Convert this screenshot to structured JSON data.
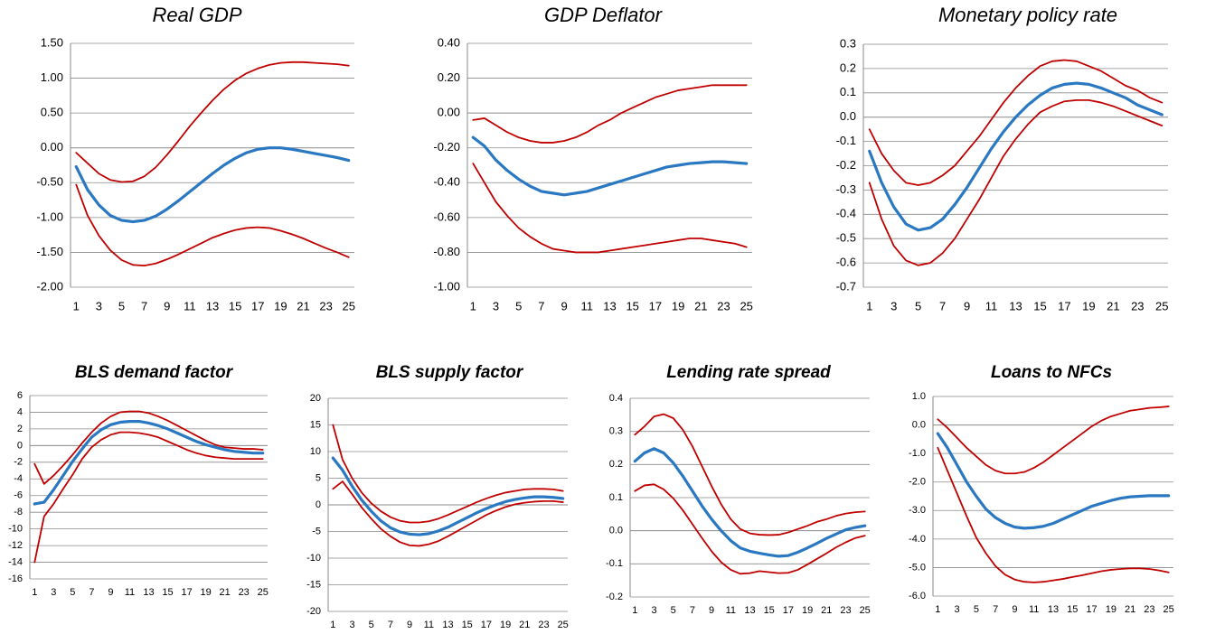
{
  "chart_data": [
    {
      "type": "line",
      "title": "Real GDP",
      "x": [
        1,
        2,
        3,
        4,
        5,
        6,
        7,
        8,
        9,
        10,
        11,
        12,
        13,
        14,
        15,
        16,
        17,
        18,
        19,
        20,
        21,
        22,
        23,
        24,
        25
      ],
      "xlim": [
        0.5,
        25.5
      ],
      "xticks": [
        1,
        3,
        5,
        7,
        9,
        11,
        13,
        15,
        17,
        19,
        21,
        23,
        25
      ],
      "ylim": [
        -2,
        1.5
      ],
      "yticks": [
        {
          "value": -2,
          "label": "-2.00"
        },
        {
          "value": -1.5,
          "label": "-1.50"
        },
        {
          "value": -1,
          "label": "-1.00"
        },
        {
          "value": -0.5,
          "label": "-0.50"
        },
        {
          "value": 0,
          "label": "0.00"
        },
        {
          "value": 0.5,
          "label": "0.50"
        },
        {
          "value": 1,
          "label": "1.00"
        },
        {
          "value": 1.5,
          "label": "1.50"
        }
      ],
      "grid": true,
      "series": [
        {
          "color": "#c00000",
          "values": [
            -0.53,
            -0.97,
            -1.26,
            -1.47,
            -1.61,
            -1.68,
            -1.69,
            -1.66,
            -1.6,
            -1.53,
            -1.45,
            -1.37,
            -1.29,
            -1.23,
            -1.18,
            -1.15,
            -1.14,
            -1.15,
            -1.19,
            -1.24,
            -1.3,
            -1.37,
            -1.44,
            -1.5,
            -1.57
          ]
        },
        {
          "color": "#c00000",
          "values": [
            -0.07,
            -0.22,
            -0.37,
            -0.46,
            -0.49,
            -0.48,
            -0.41,
            -0.28,
            -0.1,
            0.1,
            0.31,
            0.5,
            0.68,
            0.84,
            0.97,
            1.07,
            1.14,
            1.19,
            1.22,
            1.23,
            1.23,
            1.22,
            1.21,
            1.2,
            1.18
          ]
        },
        {
          "color": "#2a78c2",
          "values": [
            -0.27,
            -0.6,
            -0.82,
            -0.97,
            -1.04,
            -1.06,
            -1.04,
            -0.98,
            -0.88,
            -0.76,
            -0.63,
            -0.5,
            -0.37,
            -0.25,
            -0.15,
            -0.07,
            -0.02,
            0,
            0,
            -0.02,
            -0.05,
            -0.08,
            -0.11,
            -0.14,
            -0.18
          ]
        }
      ]
    },
    {
      "type": "line",
      "title": "GDP Deflator",
      "x": [
        1,
        2,
        3,
        4,
        5,
        6,
        7,
        8,
        9,
        10,
        11,
        12,
        13,
        14,
        15,
        16,
        17,
        18,
        19,
        20,
        21,
        22,
        23,
        24,
        25
      ],
      "xlim": [
        0.5,
        25.5
      ],
      "xticks": [
        1,
        3,
        5,
        7,
        9,
        11,
        13,
        15,
        17,
        19,
        21,
        23,
        25
      ],
      "ylim": [
        -1,
        0.4
      ],
      "yticks": [
        {
          "value": -1,
          "label": "-1.00"
        },
        {
          "value": -0.8,
          "label": "-0.80"
        },
        {
          "value": -0.6,
          "label": "-0.60"
        },
        {
          "value": -0.4,
          "label": "-0.40"
        },
        {
          "value": -0.2,
          "label": "-0.20"
        },
        {
          "value": 0,
          "label": "0.00"
        },
        {
          "value": 0.2,
          "label": "0.20"
        },
        {
          "value": 0.4,
          "label": "0.40"
        }
      ],
      "grid": true,
      "series": [
        {
          "color": "#c00000",
          "values": [
            -0.29,
            -0.4,
            -0.51,
            -0.59,
            -0.66,
            -0.71,
            -0.75,
            -0.78,
            -0.79,
            -0.8,
            -0.8,
            -0.8,
            -0.79,
            -0.78,
            -0.77,
            -0.76,
            -0.75,
            -0.74,
            -0.73,
            -0.72,
            -0.72,
            -0.73,
            -0.74,
            -0.75,
            -0.77
          ]
        },
        {
          "color": "#c00000",
          "values": [
            -0.04,
            -0.03,
            -0.07,
            -0.11,
            -0.14,
            -0.16,
            -0.17,
            -0.17,
            -0.16,
            -0.14,
            -0.11,
            -0.07,
            -0.04,
            0,
            0.03,
            0.06,
            0.09,
            0.11,
            0.13,
            0.14,
            0.15,
            0.16,
            0.16,
            0.16,
            0.16
          ]
        },
        {
          "color": "#2a78c2",
          "values": [
            -0.14,
            -0.19,
            -0.27,
            -0.33,
            -0.38,
            -0.42,
            -0.45,
            -0.46,
            -0.47,
            -0.46,
            -0.45,
            -0.43,
            -0.41,
            -0.39,
            -0.37,
            -0.35,
            -0.33,
            -0.31,
            -0.3,
            -0.29,
            -0.285,
            -0.28,
            -0.28,
            -0.285,
            -0.29
          ]
        }
      ]
    },
    {
      "type": "line",
      "title": "Monetary policy rate",
      "x": [
        1,
        2,
        3,
        4,
        5,
        6,
        7,
        8,
        9,
        10,
        11,
        12,
        13,
        14,
        15,
        16,
        17,
        18,
        19,
        20,
        21,
        22,
        23,
        24,
        25
      ],
      "xlim": [
        0.5,
        25.5
      ],
      "xticks": [
        1,
        3,
        5,
        7,
        9,
        11,
        13,
        15,
        17,
        19,
        21,
        23,
        25
      ],
      "ylim": [
        -0.7,
        0.3
      ],
      "yticks": [
        -0.7,
        -0.6,
        -0.5,
        -0.4,
        -0.3,
        -0.2,
        -0.1,
        {
          "value": 0,
          "label": "0.0"
        },
        0.1,
        0.2,
        0.3
      ],
      "grid": true,
      "series": [
        {
          "color": "#c00000",
          "values": [
            -0.27,
            -0.42,
            -0.53,
            -0.59,
            -0.61,
            -0.6,
            -0.56,
            -0.5,
            -0.42,
            -0.34,
            -0.25,
            -0.16,
            -0.09,
            -0.03,
            0.02,
            0.045,
            0.065,
            0.07,
            0.07,
            0.06,
            0.045,
            0.025,
            0.005,
            -0.015,
            -0.035
          ]
        },
        {
          "color": "#c00000",
          "values": [
            -0.05,
            -0.15,
            -0.22,
            -0.27,
            -0.28,
            -0.27,
            -0.24,
            -0.2,
            -0.14,
            -0.08,
            -0.01,
            0.06,
            0.12,
            0.17,
            0.21,
            0.23,
            0.235,
            0.23,
            0.21,
            0.19,
            0.16,
            0.13,
            0.11,
            0.08,
            0.06
          ]
        },
        {
          "color": "#2a78c2",
          "values": [
            -0.14,
            -0.27,
            -0.37,
            -0.44,
            -0.465,
            -0.455,
            -0.42,
            -0.36,
            -0.29,
            -0.21,
            -0.13,
            -0.06,
            0,
            0.05,
            0.09,
            0.12,
            0.135,
            0.14,
            0.135,
            0.12,
            0.1,
            0.08,
            0.05,
            0.03,
            0.01
          ]
        }
      ]
    },
    {
      "type": "line",
      "title": "BLS demand factor",
      "x": [
        1,
        2,
        3,
        4,
        5,
        6,
        7,
        8,
        9,
        10,
        11,
        12,
        13,
        14,
        15,
        16,
        17,
        18,
        19,
        20,
        21,
        22,
        23,
        24,
        25
      ],
      "xlim": [
        0.5,
        25.5
      ],
      "xticks": [
        1,
        3,
        5,
        7,
        9,
        11,
        13,
        15,
        17,
        19,
        21,
        23,
        25
      ],
      "ylim": [
        -16,
        6
      ],
      "yticks": [
        -16,
        -14,
        -12,
        -10,
        -8,
        -6,
        -4,
        -2,
        0,
        2,
        4,
        6
      ],
      "grid": true,
      "series": [
        {
          "color": "#c00000",
          "values": [
            -14,
            -8.5,
            -7,
            -5.2,
            -3.5,
            -1.6,
            -0.2,
            0.7,
            1.3,
            1.6,
            1.6,
            1.5,
            1.3,
            1,
            0.5,
            0,
            -0.5,
            -0.9,
            -1.2,
            -1.4,
            -1.5,
            -1.6,
            -1.6,
            -1.6,
            -1.6
          ]
        },
        {
          "color": "#c00000",
          "values": [
            -2.2,
            -4.6,
            -3.6,
            -2.4,
            -1.1,
            0.3,
            1.6,
            2.7,
            3.5,
            4,
            4.1,
            4.1,
            3.9,
            3.5,
            3,
            2.4,
            1.8,
            1.2,
            0.6,
            0.1,
            -0.2,
            -0.3,
            -0.4,
            -0.4,
            -0.5
          ]
        },
        {
          "color": "#2a78c2",
          "values": [
            -7,
            -6.8,
            -5.3,
            -3.6,
            -1.9,
            -0.4,
            1,
            1.9,
            2.5,
            2.8,
            2.9,
            2.9,
            2.7,
            2.4,
            2,
            1.5,
            1,
            0.5,
            0.1,
            -0.2,
            -0.5,
            -0.7,
            -0.8,
            -0.9,
            -0.9
          ]
        }
      ]
    },
    {
      "type": "line",
      "title": "BLS supply factor",
      "x": [
        1,
        2,
        3,
        4,
        5,
        6,
        7,
        8,
        9,
        10,
        11,
        12,
        13,
        14,
        15,
        16,
        17,
        18,
        19,
        20,
        21,
        22,
        23,
        24,
        25
      ],
      "xlim": [
        0.5,
        25.5
      ],
      "xticks": [
        1,
        3,
        5,
        7,
        9,
        11,
        13,
        15,
        17,
        19,
        21,
        23,
        25
      ],
      "ylim": [
        -20,
        20
      ],
      "yticks": [
        -20,
        -15,
        -10,
        -5,
        0,
        5,
        10,
        15,
        20
      ],
      "grid": true,
      "series": [
        {
          "color": "#c00000",
          "values": [
            3,
            4.4,
            2,
            -0.5,
            -2.6,
            -4.5,
            -5.9,
            -7,
            -7.6,
            -7.7,
            -7.4,
            -6.8,
            -5.9,
            -4.9,
            -3.9,
            -2.9,
            -1.9,
            -1.1,
            -0.4,
            0.1,
            0.4,
            0.6,
            0.7,
            0.7,
            0.5
          ]
        },
        {
          "color": "#c00000",
          "values": [
            15,
            8.5,
            5,
            2.3,
            0.3,
            -1.2,
            -2.3,
            -3,
            -3.3,
            -3.3,
            -3.1,
            -2.6,
            -1.9,
            -1.1,
            -0.3,
            0.5,
            1.2,
            1.8,
            2.3,
            2.6,
            2.9,
            3,
            3,
            2.9,
            2.6
          ]
        },
        {
          "color": "#2a78c2",
          "values": [
            8.8,
            6.5,
            3.5,
            0.9,
            -1.2,
            -3,
            -4.3,
            -5.1,
            -5.5,
            -5.6,
            -5.4,
            -4.9,
            -4.2,
            -3.3,
            -2.4,
            -1.5,
            -0.7,
            0,
            0.6,
            1,
            1.3,
            1.5,
            1.5,
            1.4,
            1.2
          ]
        }
      ]
    },
    {
      "type": "line",
      "title": "Lending rate spread",
      "x": [
        1,
        2,
        3,
        4,
        5,
        6,
        7,
        8,
        9,
        10,
        11,
        12,
        13,
        14,
        15,
        16,
        17,
        18,
        19,
        20,
        21,
        22,
        23,
        24,
        25
      ],
      "xlim": [
        0.5,
        25.5
      ],
      "xticks": [
        1,
        3,
        5,
        7,
        9,
        11,
        13,
        15,
        17,
        19,
        21,
        23,
        25
      ],
      "ylim": [
        -0.2,
        0.4
      ],
      "yticks": [
        -0.2,
        -0.1,
        {
          "value": 0,
          "label": "0.0"
        },
        0.1,
        0.2,
        0.3,
        0.4
      ],
      "grid": true,
      "series": [
        {
          "color": "#c00000",
          "values": [
            0.12,
            0.137,
            0.14,
            0.125,
            0.098,
            0.062,
            0.02,
            -0.022,
            -0.062,
            -0.095,
            -0.118,
            -0.13,
            -0.128,
            -0.122,
            -0.125,
            -0.128,
            -0.127,
            -0.118,
            -0.102,
            -0.085,
            -0.068,
            -0.05,
            -0.035,
            -0.022,
            -0.015
          ]
        },
        {
          "color": "#c00000",
          "values": [
            0.29,
            0.315,
            0.345,
            0.352,
            0.34,
            0.305,
            0.255,
            0.195,
            0.135,
            0.08,
            0.035,
            0.005,
            -0.008,
            -0.012,
            -0.013,
            -0.012,
            -0.005,
            0.005,
            0.015,
            0.027,
            0.035,
            0.045,
            0.052,
            0.056,
            0.058
          ]
        },
        {
          "color": "#2a78c2",
          "values": [
            0.21,
            0.235,
            0.248,
            0.235,
            0.205,
            0.165,
            0.12,
            0.075,
            0.035,
            0,
            -0.03,
            -0.052,
            -0.062,
            -0.068,
            -0.073,
            -0.077,
            -0.075,
            -0.065,
            -0.052,
            -0.038,
            -0.023,
            -0.01,
            0.003,
            0.01,
            0.015
          ]
        }
      ]
    },
    {
      "type": "line",
      "title": "Loans to NFCs",
      "x": [
        1,
        2,
        3,
        4,
        5,
        6,
        7,
        8,
        9,
        10,
        11,
        12,
        13,
        14,
        15,
        16,
        17,
        18,
        19,
        20,
        21,
        22,
        23,
        24,
        25
      ],
      "xlim": [
        0.5,
        25.5
      ],
      "xticks": [
        1,
        3,
        5,
        7,
        9,
        11,
        13,
        15,
        17,
        19,
        21,
        23,
        25
      ],
      "ylim": [
        -6,
        1
      ],
      "yticks": [
        {
          "value": -6,
          "label": "-6.0"
        },
        {
          "value": -5,
          "label": "-5.0"
        },
        {
          "value": -4,
          "label": "-4.0"
        },
        {
          "value": -3,
          "label": "-3.0"
        },
        {
          "value": -2,
          "label": "-2.0"
        },
        {
          "value": -1,
          "label": "-1.0"
        },
        {
          "value": 0,
          "label": "0.0"
        },
        {
          "value": 1,
          "label": "1.0"
        }
      ],
      "grid": true,
      "series": [
        {
          "color": "#c00000",
          "values": [
            -0.8,
            -1.6,
            -2.4,
            -3.2,
            -3.95,
            -4.5,
            -4.95,
            -5.25,
            -5.42,
            -5.5,
            -5.52,
            -5.5,
            -5.45,
            -5.4,
            -5.33,
            -5.27,
            -5.2,
            -5.13,
            -5.08,
            -5.05,
            -5.03,
            -5.03,
            -5.05,
            -5.1,
            -5.17
          ]
        },
        {
          "color": "#c00000",
          "values": [
            0.2,
            -0.1,
            -0.45,
            -0.8,
            -1.1,
            -1.4,
            -1.6,
            -1.7,
            -1.7,
            -1.65,
            -1.5,
            -1.3,
            -1.05,
            -0.8,
            -0.55,
            -0.3,
            -0.05,
            0.15,
            0.3,
            0.4,
            0.5,
            0.55,
            0.6,
            0.62,
            0.65
          ]
        },
        {
          "color": "#2a78c2",
          "values": [
            -0.3,
            -0.8,
            -1.4,
            -2,
            -2.5,
            -2.95,
            -3.25,
            -3.45,
            -3.58,
            -3.62,
            -3.6,
            -3.55,
            -3.45,
            -3.3,
            -3.15,
            -3,
            -2.85,
            -2.75,
            -2.65,
            -2.57,
            -2.52,
            -2.5,
            -2.48,
            -2.48,
            -2.48
          ]
        }
      ]
    }
  ]
}
